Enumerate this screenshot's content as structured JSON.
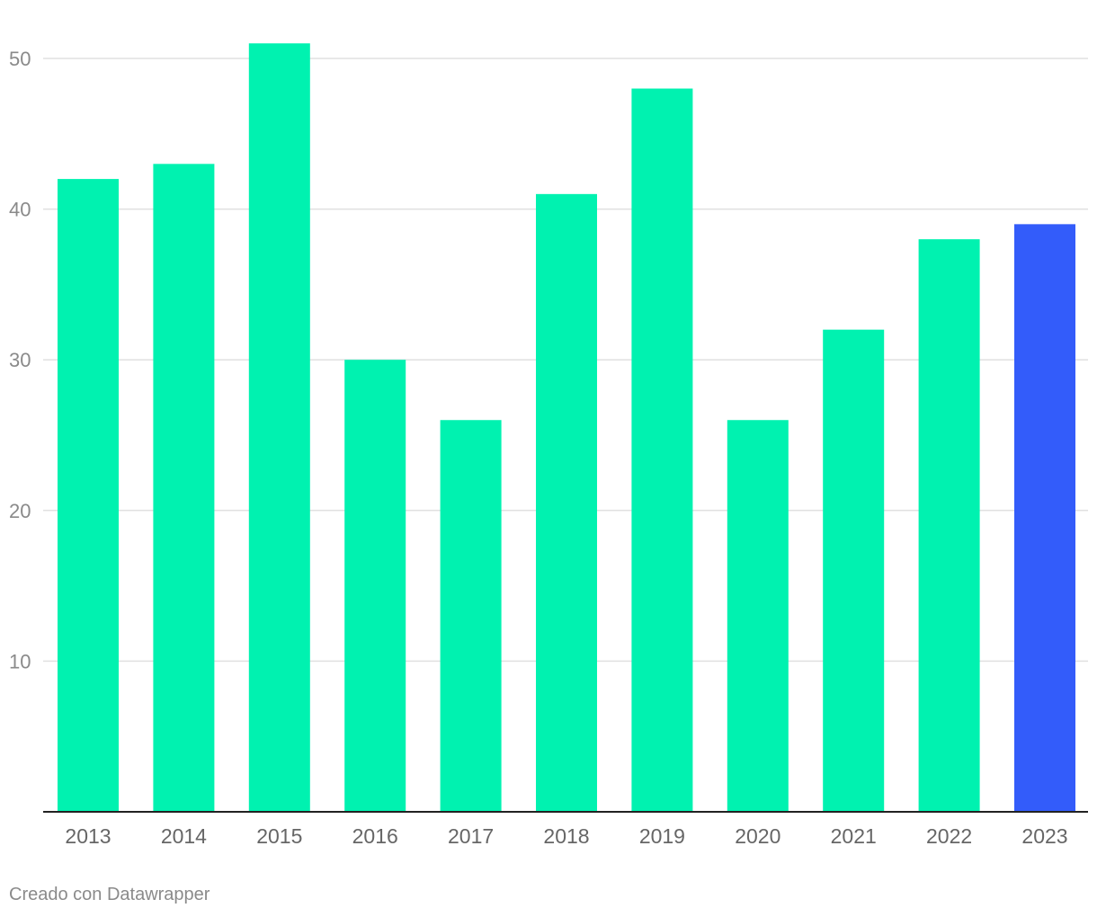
{
  "chart_data": {
    "type": "bar",
    "categories": [
      "2013",
      "2014",
      "2015",
      "2016",
      "2017",
      "2018",
      "2019",
      "2020",
      "2021",
      "2022",
      "2023"
    ],
    "values": [
      42,
      43,
      51,
      30,
      26,
      41,
      48,
      26,
      32,
      38,
      39
    ],
    "title": "",
    "xlabel": "",
    "ylabel": "",
    "ylim": [
      0,
      50
    ],
    "yticks": [
      10,
      20,
      30,
      40,
      50
    ],
    "grid": true,
    "colors": {
      "default": "#00F2B0",
      "highlight": "#335CFA",
      "highlight_category": "2023"
    }
  },
  "footer": {
    "credit": "Creado con Datawrapper"
  }
}
